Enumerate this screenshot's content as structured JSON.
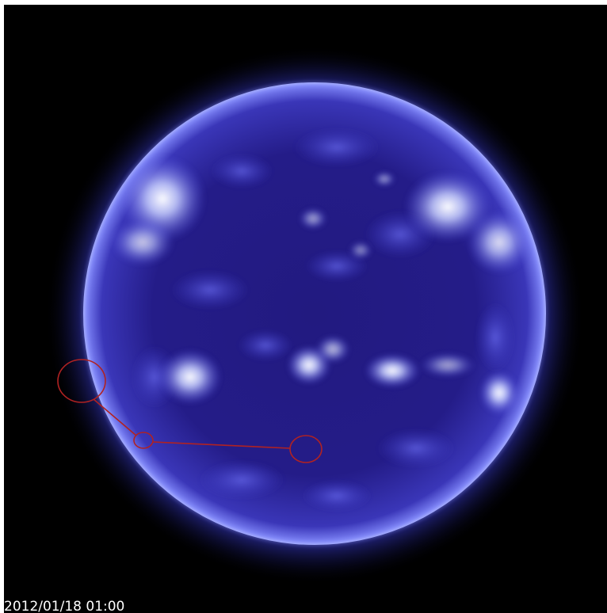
{
  "image": {
    "subject": "sun-extreme-ultraviolet",
    "timestamp": "2012/01/18 01:00",
    "colors": {
      "background": "#000000",
      "disk_dark": "#1a1570",
      "disk_mid": "#3a38c8",
      "corona_glow": "#5a5cf0",
      "active_region": "#e8ecff",
      "annotation": "#b02222",
      "timestamp_text": "#ffffff"
    }
  },
  "annotations": {
    "count": 3,
    "connector_count": 2
  }
}
